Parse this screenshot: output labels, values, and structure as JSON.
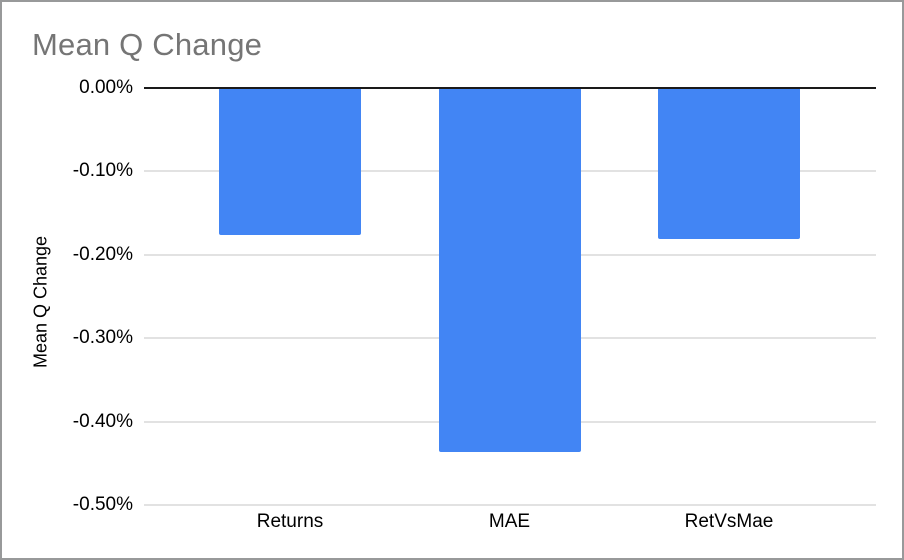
{
  "frame": {
    "background": "#ffffff",
    "border_color": "#98999a"
  },
  "chart_data": {
    "type": "bar",
    "title": "Mean Q Change",
    "xlabel": "",
    "ylabel": "Mean Q Change",
    "categories": [
      "Returns",
      "MAE",
      "RetVsMae"
    ],
    "values": [
      -0.176,
      -0.437,
      -0.181
    ],
    "value_unit": "percent",
    "ylim": [
      -0.5,
      0
    ],
    "yticks": [
      {
        "value": 0.0,
        "label": "0.00%"
      },
      {
        "value": -0.1,
        "label": "-0.10%"
      },
      {
        "value": -0.2,
        "label": "-0.20%"
      },
      {
        "value": -0.3,
        "label": "-0.30%"
      },
      {
        "value": -0.4,
        "label": "-0.40%"
      },
      {
        "value": -0.5,
        "label": "-0.50%"
      }
    ],
    "grid": true,
    "legend_position": "none",
    "colors": {
      "bar": "#4285f4",
      "title_text": "#757575",
      "axis_text": "#000000",
      "gridline": "#e2e2e2",
      "zero_line": "#1a1a1a"
    }
  }
}
